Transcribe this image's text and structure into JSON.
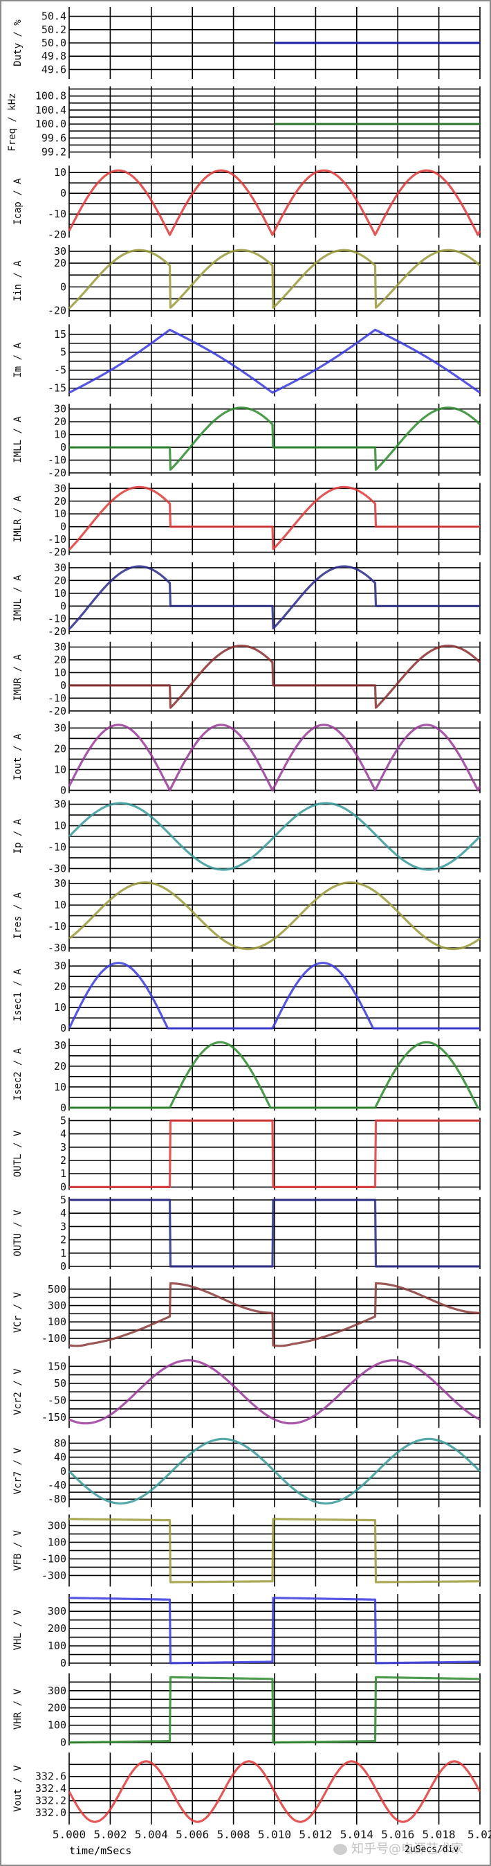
{
  "chart_data": {
    "type": "line",
    "title": "",
    "xlabel": "time/mSecs",
    "x_scale_label": "2uSecs/div",
    "xlim": [
      5.0,
      5.02
    ],
    "x_ticks": [
      "5.000",
      "5.002",
      "5.004",
      "5.006",
      "5.008",
      "5.010",
      "5.012",
      "5.014",
      "5.016",
      "5.018",
      "5.02"
    ],
    "grid": true,
    "watermark": "知乎号@电源艺术家",
    "panels": [
      {
        "ylabel": "Duty / %",
        "color": "#1a1ab4",
        "ylim": [
          49.5,
          50.5
        ],
        "grid_y": [
          50.4,
          50.2,
          50.0,
          49.8,
          49.6
        ],
        "tick_labels": [
          "50.4",
          "50.2",
          "50.0",
          "49.8",
          "49.6"
        ],
        "wave": {
          "kind": "const",
          "value": 50.0,
          "start": 0.5
        }
      },
      {
        "ylabel": "Freq / kHz",
        "color": "#2e7d2e",
        "ylim": [
          99.1,
          101.0
        ],
        "grid_y": [
          101.0,
          100.8,
          100.6,
          100.4,
          100.2,
          100.0,
          99.8,
          99.6,
          99.4,
          99.2
        ],
        "tick_labels": [
          "100.8",
          "100.4",
          "100.0",
          "99.6",
          "99.2"
        ],
        "tick_values": [
          100.8,
          100.4,
          100.0,
          99.6,
          99.2
        ],
        "wave": {
          "kind": "const",
          "value": 100.0,
          "start": 0.5
        }
      },
      {
        "ylabel": "Icap / A",
        "color": "#e03838",
        "ylim": [
          -20,
          12
        ],
        "grid_y": [
          10,
          5,
          0,
          -5,
          -10,
          -15
        ],
        "tick_labels": [
          "10",
          "0",
          "-10",
          "-20"
        ],
        "tick_values": [
          10,
          0,
          -10,
          -20
        ],
        "wave": {
          "kind": "abs_sine",
          "amp": 31,
          "offset": -20,
          "cycles": 4,
          "phase": 0
        }
      },
      {
        "ylabel": "Iin / A",
        "color": "#9a9a3a",
        "ylim": [
          -23,
          33
        ],
        "grid_y": [
          30,
          20,
          10,
          0,
          -10,
          -20
        ],
        "tick_labels": [
          "30",
          "20",
          "0",
          "-20"
        ],
        "tick_values": [
          30,
          20,
          0,
          -20
        ],
        "wave": {
          "kind": "clipped_sine_reset",
          "amp": 31,
          "start": -18,
          "end": 18,
          "cycles": 4
        }
      },
      {
        "ylabel": "Im / A",
        "color": "#3a3ae0",
        "ylim": [
          -18,
          19
        ],
        "grid_y": [
          15,
          10,
          5,
          0,
          -5,
          -10,
          -15
        ],
        "tick_labels": [
          "15",
          "5",
          "-5",
          "-15"
        ],
        "tick_values": [
          15,
          5,
          -5,
          -15
        ],
        "wave": {
          "kind": "triangle",
          "peak": 17.5,
          "trough": -17.5,
          "points": [
            [
              0,
              -17.5
            ],
            [
              0.245,
              17.5
            ],
            [
              0.495,
              -17.5
            ],
            [
              0.745,
              17.5
            ],
            [
              1.0,
              -17.5
            ]
          ]
        }
      },
      {
        "ylabel": "IMLL / A",
        "color": "#2e8b2e",
        "ylim": [
          -20,
          32
        ],
        "grid_y": [
          30,
          20,
          10,
          0,
          -10,
          -20
        ],
        "tick_labels": [
          "30",
          "20",
          "10",
          "0",
          "-10",
          "-20"
        ],
        "tick_values": [
          30,
          20,
          10,
          0,
          -10,
          -20
        ],
        "wave": {
          "kind": "half_active",
          "active": [
            1,
            3
          ],
          "amp": 31,
          "start": -18,
          "end": 18
        }
      },
      {
        "ylabel": "IMLR / A",
        "color": "#e03838",
        "ylim": [
          -20,
          32
        ],
        "grid_y": [
          30,
          20,
          10,
          0,
          -10,
          -20
        ],
        "tick_labels": [
          "30",
          "20",
          "10",
          "0",
          "-10",
          "-20"
        ],
        "tick_values": [
          30,
          20,
          10,
          0,
          -10,
          -20
        ],
        "wave": {
          "kind": "half_active",
          "active": [
            0,
            2
          ],
          "amp": 31,
          "start": -18,
          "end": 18
        }
      },
      {
        "ylabel": "IMUL / A",
        "color": "#2a2a8a",
        "ylim": [
          -20,
          32
        ],
        "grid_y": [
          30,
          20,
          10,
          0,
          -10,
          -20
        ],
        "tick_labels": [
          "30",
          "20",
          "10",
          "0",
          "-10",
          "-20"
        ],
        "tick_values": [
          30,
          20,
          10,
          0,
          -10,
          -20
        ],
        "wave": {
          "kind": "half_active",
          "active": [
            0,
            2
          ],
          "amp": 31,
          "start": -18,
          "end": 18
        }
      },
      {
        "ylabel": "IMUR / A",
        "color": "#8b2e2e",
        "ylim": [
          -20,
          32
        ],
        "grid_y": [
          30,
          20,
          10,
          0,
          -10,
          -20
        ],
        "tick_labels": [
          "30",
          "20",
          "10",
          "0",
          "-10",
          "-20"
        ],
        "tick_values": [
          30,
          20,
          10,
          0,
          -10,
          -20
        ],
        "wave": {
          "kind": "half_active",
          "active": [
            1,
            3
          ],
          "amp": 31,
          "start": -18,
          "end": 18
        }
      },
      {
        "ylabel": "Iout / A",
        "color": "#9a3a9a",
        "ylim": [
          0,
          32
        ],
        "grid_y": [
          30,
          25,
          20,
          15,
          10,
          5,
          0
        ],
        "tick_labels": [
          "30",
          "20",
          "10",
          "0"
        ],
        "tick_values": [
          30,
          20,
          10,
          0
        ],
        "wave": {
          "kind": "abs_sine",
          "amp": 31.5,
          "offset": 0,
          "cycles": 4,
          "phase": 0
        }
      },
      {
        "ylabel": "Ip / A",
        "color": "#3a9a9a",
        "ylim": [
          -31,
          31
        ],
        "grid_y": [
          30,
          20,
          10,
          0,
          -10,
          -20,
          -30
        ],
        "tick_labels": [
          "30",
          "10",
          "-10",
          "-30"
        ],
        "tick_values": [
          30,
          10,
          -10,
          -30
        ],
        "wave": {
          "kind": "sine",
          "amp": 31,
          "offset": 0,
          "cycles": 2,
          "phase": 0
        }
      },
      {
        "ylabel": "Ires / A",
        "color": "#9a9a3a",
        "ylim": [
          -31,
          31
        ],
        "grid_y": [
          30,
          20,
          10,
          0,
          -10,
          -20,
          -30
        ],
        "tick_labels": [
          "30",
          "10",
          "-10",
          "-30"
        ],
        "tick_values": [
          30,
          10,
          -10,
          -30
        ],
        "wave": {
          "kind": "sine",
          "amp": 31,
          "offset": 0,
          "cycles": 2,
          "phase": -0.12
        }
      },
      {
        "ylabel": "Isec1 / A",
        "color": "#3a3ae0",
        "ylim": [
          0,
          32
        ],
        "grid_y": [
          30,
          25,
          20,
          15,
          10,
          5,
          0
        ],
        "tick_labels": [
          "30",
          "20",
          "10",
          "0"
        ],
        "tick_values": [
          30,
          20,
          10,
          0
        ],
        "wave": {
          "kind": "rect_sine",
          "active": [
            0,
            2
          ],
          "amp": 31.5
        }
      },
      {
        "ylabel": "Isec2 / A",
        "color": "#2e8b2e",
        "ylim": [
          0,
          32
        ],
        "grid_y": [
          30,
          25,
          20,
          15,
          10,
          5,
          0
        ],
        "tick_labels": [
          "30",
          "20",
          "10",
          "0"
        ],
        "tick_values": [
          30,
          20,
          10,
          0
        ],
        "wave": {
          "kind": "rect_sine",
          "active": [
            1,
            3
          ],
          "amp": 31.5
        }
      },
      {
        "ylabel": "OUTL / V",
        "color": "#e03838",
        "ylim": [
          0,
          5
        ],
        "grid_y": [
          5,
          4,
          3,
          2,
          1,
          0
        ],
        "tick_labels": [
          "5",
          "4",
          "3",
          "2",
          "1",
          "0"
        ],
        "tick_values": [
          5,
          4,
          3,
          2,
          1,
          0
        ],
        "wave": {
          "kind": "square",
          "active": [
            1,
            3
          ],
          "high": 5,
          "low": 0
        }
      },
      {
        "ylabel": "OUTU / V",
        "color": "#2a2a8a",
        "ylim": [
          0,
          5
        ],
        "grid_y": [
          5,
          4,
          3,
          2,
          1,
          0
        ],
        "tick_labels": [
          "5",
          "4",
          "3",
          "2",
          "1",
          "0"
        ],
        "tick_values": [
          5,
          4,
          3,
          2,
          1,
          0
        ],
        "wave": {
          "kind": "square",
          "active": [
            0,
            2
          ],
          "high": 5,
          "low": 0
        }
      },
      {
        "ylabel": "VCr / V",
        "color": "#8b3a3a",
        "ylim": [
          -190,
          620
        ],
        "grid_y": [
          500,
          400,
          300,
          200,
          100,
          0,
          -100
        ],
        "tick_labels": [
          "500",
          "300",
          "100",
          "-100"
        ],
        "tick_values": [
          500,
          300,
          100,
          -100
        ],
        "wave": {
          "kind": "vcr"
        }
      },
      {
        "ylabel": "Vcr2 / V",
        "color": "#9a3a9a",
        "ylim": [
          -195,
          195
        ],
        "grid_y": [
          150,
          100,
          50,
          0,
          -50,
          -100,
          -150
        ],
        "tick_labels": [
          "150",
          "50",
          "-50",
          "-150"
        ],
        "tick_values": [
          150,
          50,
          -50,
          -150
        ],
        "wave": {
          "kind": "sine",
          "amp": 185,
          "offset": 0,
          "cycles": 2,
          "phase": -0.33
        }
      },
      {
        "ylabel": "Vcr7 / V",
        "color": "#3a9a9a",
        "ylim": [
          -95,
          95
        ],
        "grid_y": [
          80,
          60,
          40,
          20,
          0,
          -20,
          -40,
          -60,
          -80
        ],
        "tick_labels": [
          "80",
          "40",
          "0",
          "-40",
          "-80"
        ],
        "tick_values": [
          80,
          40,
          0,
          -40,
          -80
        ],
        "wave": {
          "kind": "sine",
          "amp": 92,
          "offset": 0,
          "cycles": 2,
          "phase": -0.5
        }
      },
      {
        "ylabel": "VFB / V",
        "color": "#9a9a3a",
        "ylim": [
          -400,
          400
        ],
        "grid_y": [
          300,
          200,
          100,
          0,
          -100,
          -200,
          -300
        ],
        "tick_labels": [
          "300",
          "100",
          "-100",
          "-300"
        ],
        "tick_values": [
          300,
          100,
          -100,
          -300
        ],
        "wave": {
          "kind": "square_droop",
          "active": [
            0,
            2
          ],
          "high": [
            380,
            365
          ],
          "low": [
            -380,
            -370
          ]
        }
      },
      {
        "ylabel": "VHL / V",
        "color": "#3a3ae0",
        "ylim": [
          0,
          385
        ],
        "grid_y": [
          350,
          300,
          250,
          200,
          150,
          100,
          50,
          0
        ],
        "tick_labels": [
          "300",
          "200",
          "100",
          "0"
        ],
        "tick_values": [
          300,
          200,
          100,
          0
        ],
        "wave": {
          "kind": "square_droop",
          "active": [
            0,
            2
          ],
          "high": [
            378,
            368
          ],
          "low": [
            0,
            8
          ]
        }
      },
      {
        "ylabel": "VHR / V",
        "color": "#2e8b2e",
        "ylim": [
          0,
          385
        ],
        "grid_y": [
          350,
          300,
          250,
          200,
          150,
          100,
          50,
          0
        ],
        "tick_labels": [
          "300",
          "200",
          "100",
          "0"
        ],
        "tick_values": [
          300,
          200,
          100,
          0
        ],
        "wave": {
          "kind": "square_droop",
          "active": [
            1,
            3
          ],
          "high": [
            378,
            368
          ],
          "low": [
            0,
            8
          ]
        }
      },
      {
        "ylabel": "Vout / V",
        "color": "#e03838",
        "ylim": [
          331.85,
          332.95
        ],
        "grid_y": [
          332.8,
          332.6,
          332.4,
          332.2,
          332.0
        ],
        "tick_labels": [
          "332.6",
          "332.4",
          "332.2",
          "332.0"
        ],
        "tick_values": [
          332.6,
          332.4,
          332.2,
          332.0
        ],
        "wave": {
          "kind": "sine",
          "amp": 0.5,
          "offset": 332.35,
          "cycles": 4,
          "phase": -0.5
        }
      }
    ]
  }
}
